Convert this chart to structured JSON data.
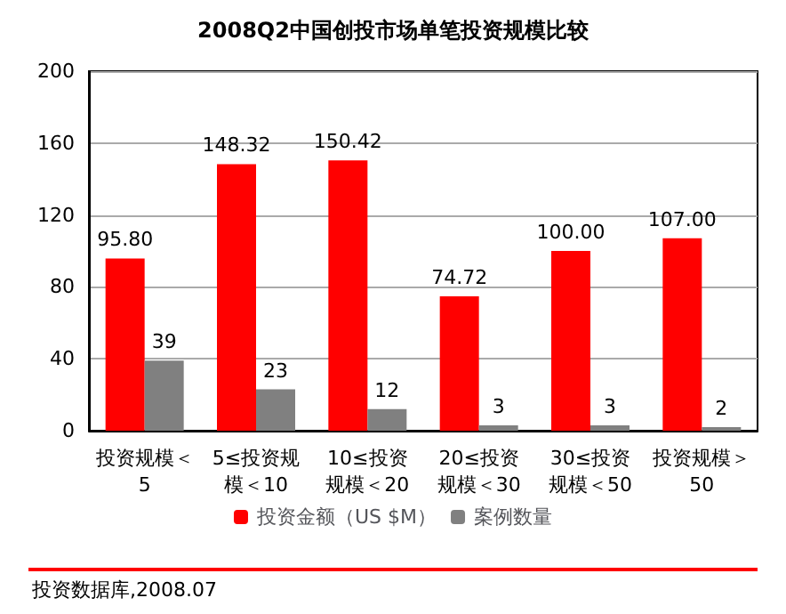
{
  "chart_data": {
    "type": "bar",
    "title": "2008Q2中国创投市场单笔投资规模比较",
    "categories": [
      "投资规模＜5",
      "5≤投资规模＜10",
      "10≤投资规模＜20",
      "20≤投资规模＜30",
      "30≤投资规模＜50",
      "投资规模＞50"
    ],
    "series": [
      {
        "name": "投资金额（US $M）",
        "color": "#ff0000",
        "values": [
          95.8,
          148.32,
          150.42,
          74.72,
          100.0,
          107.0
        ],
        "value_labels": [
          "95.80",
          "148.32",
          "150.42",
          "74.72",
          "100.00",
          "107.00"
        ]
      },
      {
        "name": "案例数量",
        "color": "#808080",
        "values": [
          39,
          23,
          12,
          3,
          3,
          2
        ],
        "value_labels": [
          "39",
          "23",
          "12",
          "3",
          "3",
          "2"
        ]
      }
    ],
    "ylim": [
      0,
      200
    ],
    "yticks": [
      0,
      40,
      80,
      120,
      160,
      200
    ],
    "grid": "y",
    "legend": "bottom",
    "annotations": [
      "投资数据库,2008.07"
    ]
  }
}
